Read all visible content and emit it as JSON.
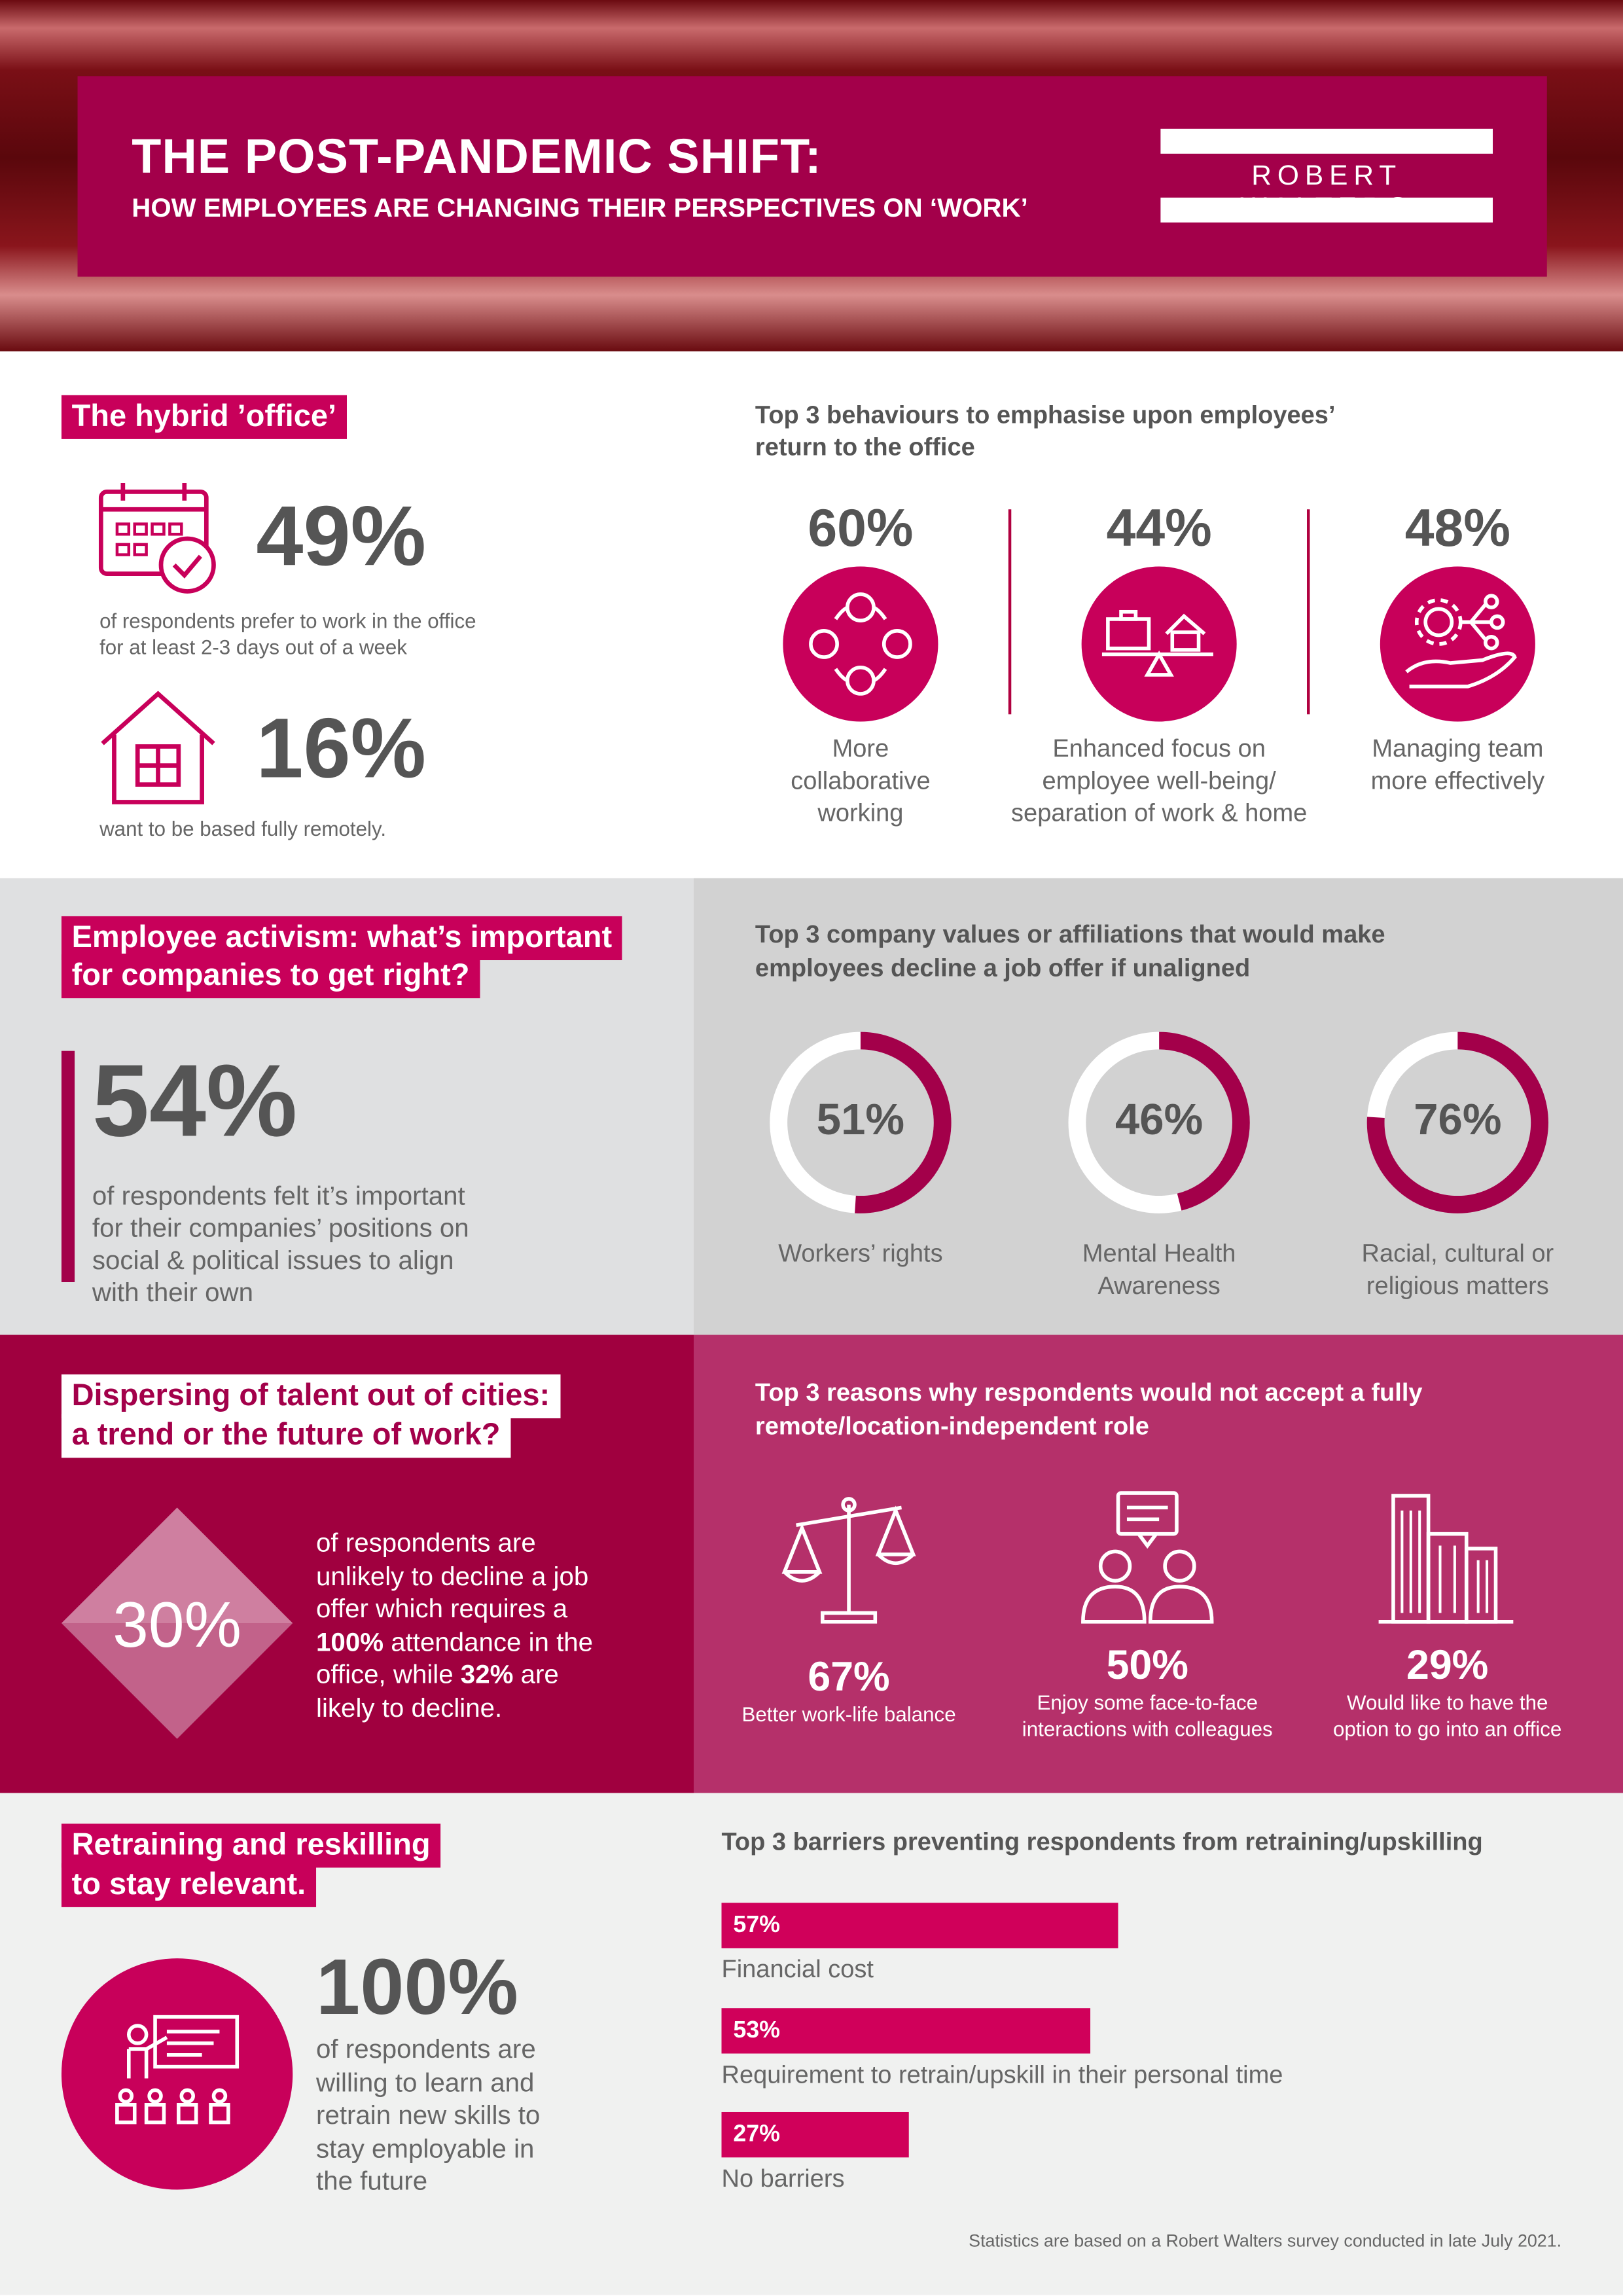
{
  "header": {
    "title": "THE POST-PANDEMIC SHIFT:",
    "subtitle": "HOW EMPLOYEES ARE CHANGING THEIR PERSPECTIVES ON ‘WORK’",
    "logo": "ROBERT WALTERS"
  },
  "hybrid": {
    "tag": "The hybrid ’office’",
    "stat1": "49%",
    "desc1a": "of respondents prefer to work in the office",
    "desc1b": "for at least 2-3 days out of a week",
    "stat2": "16%",
    "desc2": "want to be based fully remotely."
  },
  "behaviours": {
    "heading1": "Top 3 behaviours to emphasise upon employees’",
    "heading2": "return to the office",
    "items": [
      {
        "pct": "60%",
        "l1": "More",
        "l2": "collaborative",
        "l3": "working",
        "icon": "people-network-icon"
      },
      {
        "pct": "44%",
        "l1": "Enhanced focus on",
        "l2": "employee well-being/",
        "l3": "separation of work & home",
        "icon": "balance-work-home-icon"
      },
      {
        "pct": "48%",
        "l1": "Managing team",
        "l2": "more effectively",
        "l3": "",
        "icon": "hand-gear-icon"
      }
    ]
  },
  "activism": {
    "tag1": "Employee activism: what’s important",
    "tag2": "for companies to get right?",
    "stat": "54%",
    "d1": "of respondents felt it’s important",
    "d2": "for their companies’ positions on",
    "d3": "social & political issues to align",
    "d4": "with their own"
  },
  "values": {
    "heading1": "Top 3 company values or affiliations that would make",
    "heading2": "employees decline a job offer if unaligned",
    "items": [
      {
        "pct": "51%",
        "value": 51,
        "l1": "Workers’ rights",
        "l2": ""
      },
      {
        "pct": "46%",
        "value": 46,
        "l1": "Mental Health",
        "l2": "Awareness"
      },
      {
        "pct": "76%",
        "value": 76,
        "l1": "Racial, cultural or",
        "l2": "religious matters"
      }
    ]
  },
  "talent": {
    "tag1": "Dispersing of talent out of cities:",
    "tag2": "a trend or the future of work?",
    "stat": "30%",
    "t1": "of respondents are",
    "t2": "unlikely to decline a job",
    "t3": "offer which requires a",
    "t4b": "100%",
    "t4": " attendance in the",
    "t5": "office, while ",
    "t5b": "32%",
    "t5c": " are",
    "t6": "likely to decline."
  },
  "reasons": {
    "heading1": "Top 3 reasons why respondents would not accept a fully",
    "heading2": "remote/location-independent role",
    "items": [
      {
        "pct": "67%",
        "l1": "Better work-life balance",
        "l2": ""
      },
      {
        "pct": "50%",
        "l1": "Enjoy some face-to-face",
        "l2": "interactions with colleagues"
      },
      {
        "pct": "29%",
        "l1": "Would like to have the",
        "l2": "option to go into an office"
      }
    ]
  },
  "retraining": {
    "tag1": "Retraining and reskilling",
    "tag2": "to stay relevant.",
    "stat": "100%",
    "d1": "of respondents are",
    "d2": "willing to learn and",
    "d3": "retrain new skills to",
    "d4": "stay employable in",
    "d5": "the future"
  },
  "chart_data": {
    "type": "bar",
    "title": "Top 3 barriers preventing respondents from retraining/upskilling",
    "categories": [
      "Financial cost",
      "Requirement to retrain/upskill in their personal time",
      "No barriers"
    ],
    "values": [
      57,
      53,
      27
    ],
    "labels": [
      "57%",
      "53%",
      "27%"
    ]
  },
  "footer": {
    "note": "Statistics are based on a Robert Walters survey conducted in late July 2021."
  },
  "colors": {
    "brand": "#a3004a",
    "accent": "#c8005a"
  }
}
